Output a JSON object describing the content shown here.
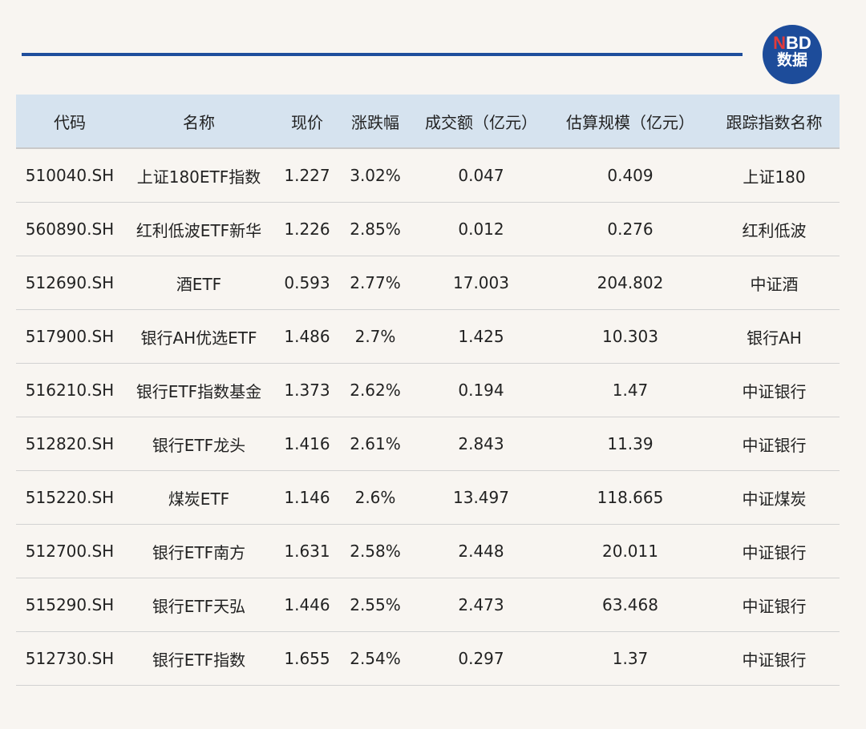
{
  "logo": {
    "brand_n": "N",
    "brand_rest": "BD",
    "subtitle": "数据",
    "color": "#1d4c9a"
  },
  "table": {
    "headers": [
      "代码",
      "名称",
      "现价",
      "涨跌幅",
      "成交额（亿元）",
      "估算规模（亿元）",
      "跟踪指数名称"
    ],
    "rows": [
      [
        "510040.SH",
        "上证180ETF指数",
        "1.227",
        "3.02%",
        "0.047",
        "0.409",
        "上证180"
      ],
      [
        "560890.SH",
        "红利低波ETF新华",
        "1.226",
        "2.85%",
        "0.012",
        "0.276",
        "红利低波"
      ],
      [
        "512690.SH",
        "酒ETF",
        "0.593",
        "2.77%",
        "17.003",
        "204.802",
        "中证酒"
      ],
      [
        "517900.SH",
        "银行AH优选ETF",
        "1.486",
        "2.7%",
        "1.425",
        "10.303",
        "银行AH"
      ],
      [
        "516210.SH",
        "银行ETF指数基金",
        "1.373",
        "2.62%",
        "0.194",
        "1.47",
        "中证银行"
      ],
      [
        "512820.SH",
        "银行ETF龙头",
        "1.416",
        "2.61%",
        "2.843",
        "11.39",
        "中证银行"
      ],
      [
        "515220.SH",
        "煤炭ETF",
        "1.146",
        "2.6%",
        "13.497",
        "118.665",
        "中证煤炭"
      ],
      [
        "512700.SH",
        "银行ETF南方",
        "1.631",
        "2.58%",
        "2.448",
        "20.011",
        "中证银行"
      ],
      [
        "515290.SH",
        "银行ETF天弘",
        "1.446",
        "2.55%",
        "2.473",
        "63.468",
        "中证银行"
      ],
      [
        "512730.SH",
        "银行ETF指数",
        "1.655",
        "2.54%",
        "0.297",
        "1.37",
        "中证银行"
      ]
    ]
  }
}
